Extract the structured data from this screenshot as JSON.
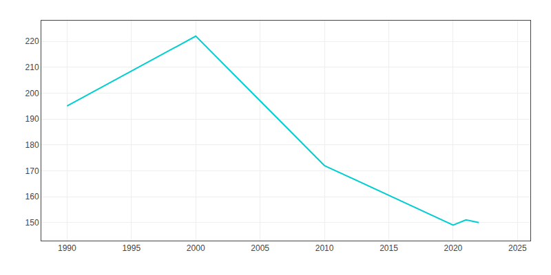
{
  "chart_data": {
    "type": "line",
    "x": [
      1990,
      2000,
      2010,
      2020,
      2021,
      2022
    ],
    "values": [
      195,
      222,
      172,
      149,
      151,
      150
    ],
    "color": "#00CED1",
    "xlim": [
      1988,
      2026
    ],
    "ylim": [
      143,
      228
    ],
    "xticks": [
      1990,
      1995,
      2000,
      2005,
      2010,
      2015,
      2020,
      2025
    ],
    "yticks": [
      150,
      160,
      170,
      180,
      190,
      200,
      210,
      220
    ],
    "grid": true
  }
}
